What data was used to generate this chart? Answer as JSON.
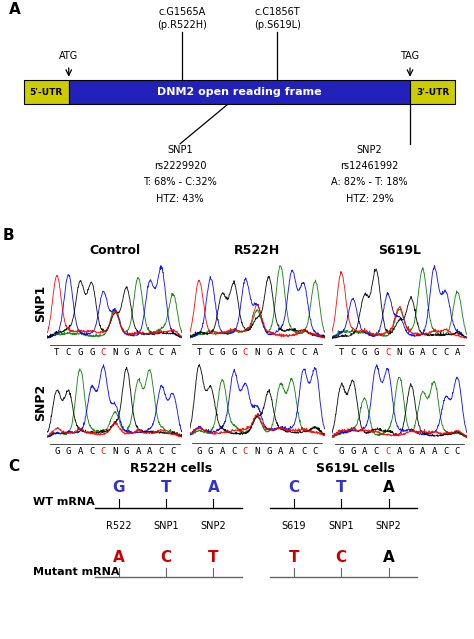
{
  "panel_A": {
    "utr5_label": "5'-UTR",
    "utr3_label": "3'-UTR",
    "orf_label": "DNM2 open reading frame",
    "utr_color": "#cccc00",
    "orf_color": "#2222bb",
    "atg_label": "ATG",
    "tag_label": "TAG",
    "mut1_label": "c.G1565A\n(p.R522H)",
    "mut2_label": "c.C1856T\n(p.S619L)",
    "snp1_lines": [
      "SNP1",
      "rs2229920",
      "T: 68% - C:32%",
      "HTZ: 43%"
    ],
    "snp2_lines": [
      "SNP2",
      "rs12461992",
      "A: 82% - T: 18%",
      "HTZ: 29%"
    ]
  },
  "panel_B": {
    "col_labels": [
      "Control",
      "R522H",
      "S619L"
    ],
    "row_labels": [
      "SNP1",
      "SNP2"
    ],
    "seqs_row0": [
      "TCGGCNGACCA",
      "TCGGCNGACCA",
      "TCGGCNGACCA"
    ],
    "seqs_row1": [
      "GGACCNGAACC",
      "GGACCNGAACC",
      "GGACCAGAACC"
    ],
    "highlight_row0": [
      5,
      5,
      5
    ],
    "highlight_row1": [
      5,
      5,
      5
    ],
    "highlight_chars_row1": [
      "N",
      "N",
      "A"
    ]
  },
  "panel_C": {
    "r522h_header": "R522H cells",
    "s619l_header": "S619L cells",
    "wt_label": "WT mRNA",
    "mut_label": "Mutant mRNA",
    "r522h_wt_letters": [
      "G",
      "T",
      "A"
    ],
    "r522h_wt_colors": [
      "#3333cc",
      "#3333cc",
      "#3333cc"
    ],
    "r522h_wt_positions": [
      "R522",
      "SNP1",
      "SNP2"
    ],
    "r522h_mut_letters": [
      "A",
      "C",
      "T"
    ],
    "r522h_mut_colors": [
      "#cc0000",
      "#cc0000",
      "#cc0000"
    ],
    "s619l_wt_letters": [
      "C",
      "T",
      "A"
    ],
    "s619l_wt_colors": [
      "#3333cc",
      "#3333cc",
      "black"
    ],
    "s619l_wt_positions": [
      "S619",
      "SNP1",
      "SNP2"
    ],
    "s619l_mut_letters": [
      "T",
      "C",
      "A"
    ],
    "s619l_mut_colors": [
      "#cc0000",
      "#cc0000",
      "black"
    ]
  }
}
